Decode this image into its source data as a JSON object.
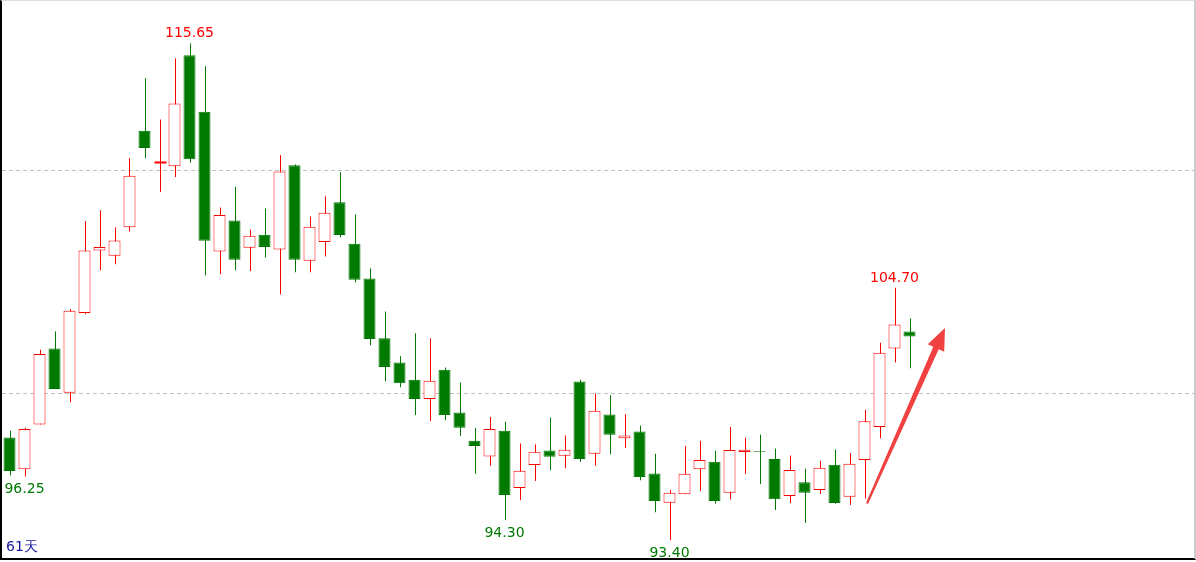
{
  "chart_data": {
    "type": "candlestick",
    "categories": [
      null,
      null,
      null,
      null,
      null,
      null,
      null,
      null,
      null,
      null,
      null,
      null,
      null,
      null,
      null,
      null,
      null,
      null,
      null,
      null,
      null,
      null,
      null,
      null,
      null,
      null,
      null,
      null,
      null,
      null,
      null,
      null,
      null,
      null,
      null,
      null,
      null,
      null,
      null,
      null,
      null,
      null,
      null,
      null,
      null,
      null,
      null,
      null,
      null,
      null,
      null,
      null,
      null,
      null,
      null,
      null,
      null,
      null,
      null,
      null,
      null
    ],
    "ohlc": [
      [
        98.0,
        98.3,
        96.3,
        96.5
      ],
      [
        96.57,
        98.43,
        96.25,
        98.38
      ],
      [
        98.58,
        101.93,
        98.58,
        101.74
      ],
      [
        101.98,
        102.75,
        100.17,
        100.17
      ],
      [
        100.0,
        103.75,
        99.58,
        103.67
      ],
      [
        103.58,
        107.69,
        103.52,
        106.37
      ],
      [
        106.37,
        108.18,
        105.49,
        106.53
      ],
      [
        106.14,
        107.41,
        105.76,
        106.82
      ],
      [
        107.41,
        110.51,
        107.22,
        109.72
      ],
      [
        111.74,
        114.09,
        110.51,
        110.97
      ],
      [
        110.34,
        112.24,
        109.0,
        110.34
      ],
      [
        110.15,
        114.98,
        109.66,
        112.96
      ],
      [
        115.12,
        115.65,
        110.31,
        110.46
      ],
      [
        112.59,
        114.63,
        105.26,
        106.81
      ],
      [
        106.33,
        108.3,
        105.32,
        107.96
      ],
      [
        107.72,
        109.23,
        105.49,
        105.96
      ],
      [
        106.5,
        107.31,
        105.45,
        107.04
      ],
      [
        107.08,
        108.26,
        106.06,
        106.53
      ],
      [
        106.42,
        110.65,
        104.41,
        109.91
      ],
      [
        110.19,
        110.23,
        105.4,
        105.96
      ],
      [
        105.91,
        107.89,
        105.4,
        107.44
      ],
      [
        106.76,
        108.8,
        106.11,
        108.07
      ],
      [
        108.53,
        109.88,
        106.96,
        107.07
      ],
      [
        106.68,
        107.99,
        104.95,
        105.06
      ],
      [
        105.12,
        105.57,
        102.13,
        102.41
      ],
      [
        102.44,
        103.64,
        100.51,
        101.16
      ],
      [
        101.36,
        101.64,
        100.25,
        100.43
      ],
      [
        100.59,
        102.67,
        99.0,
        99.72
      ],
      [
        99.72,
        102.44,
        98.73,
        100.54
      ],
      [
        101.03,
        101.13,
        98.77,
        99.0
      ],
      [
        99.12,
        100.46,
        98.07,
        98.43
      ],
      [
        97.85,
        98.43,
        96.37,
        97.62
      ],
      [
        97.15,
        98.92,
        96.73,
        98.38
      ],
      [
        98.3,
        98.7,
        94.3,
        95.42
      ],
      [
        95.74,
        97.73,
        95.2,
        96.51
      ],
      [
        96.77,
        97.69,
        96.05,
        97.36
      ],
      [
        97.41,
        98.89,
        96.53,
        97.13
      ],
      [
        97.18,
        98.09,
        96.62,
        97.45
      ],
      [
        100.51,
        100.59,
        96.91,
        97.04
      ],
      [
        97.27,
        99.97,
        96.73,
        99.2
      ],
      [
        99.03,
        99.89,
        97.25,
        98.12
      ],
      [
        97.96,
        99.04,
        97.53,
        98.09
      ],
      [
        98.27,
        98.53,
        96.08,
        96.23
      ],
      [
        96.39,
        97.27,
        94.65,
        95.15
      ],
      [
        95.08,
        95.65,
        93.4,
        95.52
      ],
      [
        95.46,
        97.62,
        95.46,
        96.37
      ],
      [
        96.57,
        97.85,
        95.6,
        96.99
      ],
      [
        96.91,
        97.41,
        95.03,
        95.15
      ],
      [
        95.52,
        98.47,
        95.23,
        97.44
      ],
      [
        97.35,
        97.99,
        96.36,
        97.45
      ],
      [
        97.39,
        98.13,
        95.91,
        97.36
      ],
      [
        97.04,
        97.5,
        94.75,
        95.23
      ],
      [
        95.38,
        97.19,
        95.06,
        96.54
      ],
      [
        95.99,
        96.6,
        94.17,
        95.52
      ],
      [
        95.65,
        96.96,
        95.46,
        96.64
      ],
      [
        96.78,
        97.45,
        95.03,
        95.06
      ],
      [
        95.34,
        97.3,
        94.98,
        96.82
      ],
      [
        96.99,
        99.24,
        95.26,
        98.73
      ],
      [
        98.47,
        102.24,
        97.96,
        101.79
      ],
      [
        101.98,
        104.7,
        101.36,
        103.06
      ],
      [
        102.75,
        103.33,
        101.1,
        102.52
      ]
    ],
    "colors": [
      "#007a00",
      "#ff0000",
      "#ff0000",
      "#007a00",
      "#ff0000",
      "#ff0000",
      "#ff0000",
      "#ff0000",
      "#ff0000",
      "#007a00",
      "#ff0000",
      "#ff0000",
      "#007a00",
      "#007a00",
      "#ff0000",
      "#007a00",
      "#ff0000",
      "#007a00",
      "#ff0000",
      "#007a00",
      "#ff0000",
      "#ff0000",
      "#007a00",
      "#007a00",
      "#007a00",
      "#007a00",
      "#007a00",
      "#007a00",
      "#ff0000",
      "#007a00",
      "#007a00",
      "#007a00",
      "#ff0000",
      "#007a00",
      "#ff0000",
      "#ff0000",
      "#007a00",
      "#ff0000",
      "#007a00",
      "#ff0000",
      "#007a00",
      "#ff0000",
      "#007a00",
      "#007a00",
      "#ff0000",
      "#ff0000",
      "#ff0000",
      "#007a00",
      "#ff0000",
      "#ff0000",
      "#007a00",
      "#007a00",
      "#ff0000",
      "#007a00",
      "#ff0000",
      "#007a00",
      "#ff0000",
      "#ff0000",
      "#ff0000",
      "#ff0000",
      "#007a00"
    ],
    "ylim": [
      92.6,
      117.55
    ],
    "yticks": [
      {
        "value": 100,
        "label": null
      },
      {
        "value": 110,
        "label": null
      }
    ],
    "grid": "y",
    "tick_labels": false,
    "legend": false,
    "annotations": [
      {
        "text": "115.65",
        "y": 115.65
      },
      {
        "text": "104.70",
        "y": 104.7
      },
      {
        "text": "96.25",
        "y": 96.25
      },
      {
        "text": "94.30",
        "y": 94.3
      },
      {
        "text": "93.40",
        "y": 93.4
      },
      "61天"
    ]
  }
}
